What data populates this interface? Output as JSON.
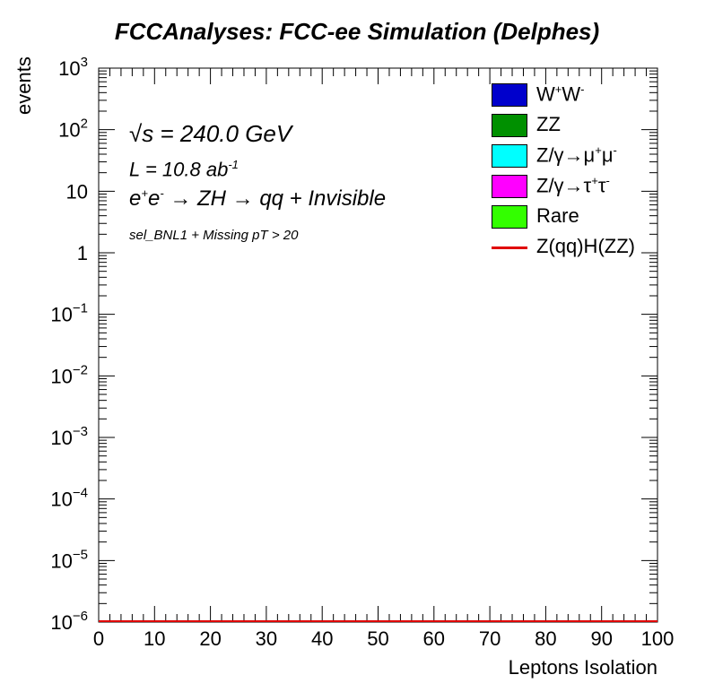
{
  "title": "FCCAnalyses: FCC-ee Simulation (Delphes)",
  "annotations": {
    "sqrt_s_root": "√",
    "sqrt_s_text": "s = 240.0 GeV",
    "lumi_base": "L = 10.8 ab",
    "lumi_exp": "-1",
    "process_e": "e",
    "process_plus": "+",
    "process_e2": "e",
    "process_minus": "-",
    "process_rest": " → ZH → qq + Invisible",
    "selection": "sel_BNL1 + Missing pT > 20"
  },
  "colors": {
    "WW": "#0000cc",
    "ZZ": "#009000",
    "Zmumu": "#00ffff",
    "Ztautau": "#ff00ff",
    "Rare": "#33ff00",
    "signal": "#e00000"
  },
  "legend": [
    {
      "base": "W",
      "sup1": "+",
      "mid": "W",
      "sup2": "-",
      "color": "#0000cc",
      "type": "fill"
    },
    {
      "base": "ZZ",
      "sup1": "",
      "mid": "",
      "sup2": "",
      "color": "#009000",
      "type": "fill"
    },
    {
      "base": "Z/γ→μ",
      "sup1": "+",
      "mid": "μ",
      "sup2": "-",
      "color": "#00ffff",
      "type": "fill"
    },
    {
      "base": "Z/γ→τ",
      "sup1": "+",
      "mid": "τ",
      "sup2": "-",
      "color": "#ff00ff",
      "type": "fill"
    },
    {
      "base": "Rare",
      "sup1": "",
      "mid": "",
      "sup2": "",
      "color": "#33ff00",
      "type": "fill"
    },
    {
      "base": "Z(qq)H(ZZ)",
      "sup1": "",
      "mid": "",
      "sup2": "",
      "color": "#e00000",
      "type": "line"
    }
  ],
  "chart_data": {
    "type": "area",
    "title": "FCCAnalyses: FCC-ee Simulation (Delphes)",
    "xlabel": "Leptons Isolation",
    "ylabel": "events",
    "xlim": [
      0,
      100
    ],
    "ylim": [
      1e-06,
      1000
    ],
    "yscale": "log",
    "x_ticks": [
      "0",
      "10",
      "20",
      "30",
      "40",
      "50",
      "60",
      "70",
      "80",
      "90",
      "100"
    ],
    "y_ticks": [
      {
        "base": "10",
        "exp": "3"
      },
      {
        "base": "10",
        "exp": "2"
      },
      {
        "base": "10",
        "exp": ""
      },
      {
        "base": "1",
        "exp": ""
      },
      {
        "base": "10",
        "exp": "−1"
      },
      {
        "base": "10",
        "exp": "−2"
      },
      {
        "base": "10",
        "exp": "−3"
      },
      {
        "base": "10",
        "exp": "−4"
      },
      {
        "base": "10",
        "exp": "−5"
      },
      {
        "base": "10",
        "exp": "−6"
      }
    ],
    "series": [
      {
        "name": "W+W-",
        "values": []
      },
      {
        "name": "ZZ",
        "values": []
      },
      {
        "name": "Z/γ→μ+μ-",
        "values": []
      },
      {
        "name": "Z/γ→τ+τ-",
        "values": []
      },
      {
        "name": "Rare",
        "values": []
      },
      {
        "name": "Z(qq)H(ZZ)",
        "values": [],
        "style": "line"
      }
    ],
    "grid": false,
    "legend_position": "top-right"
  }
}
